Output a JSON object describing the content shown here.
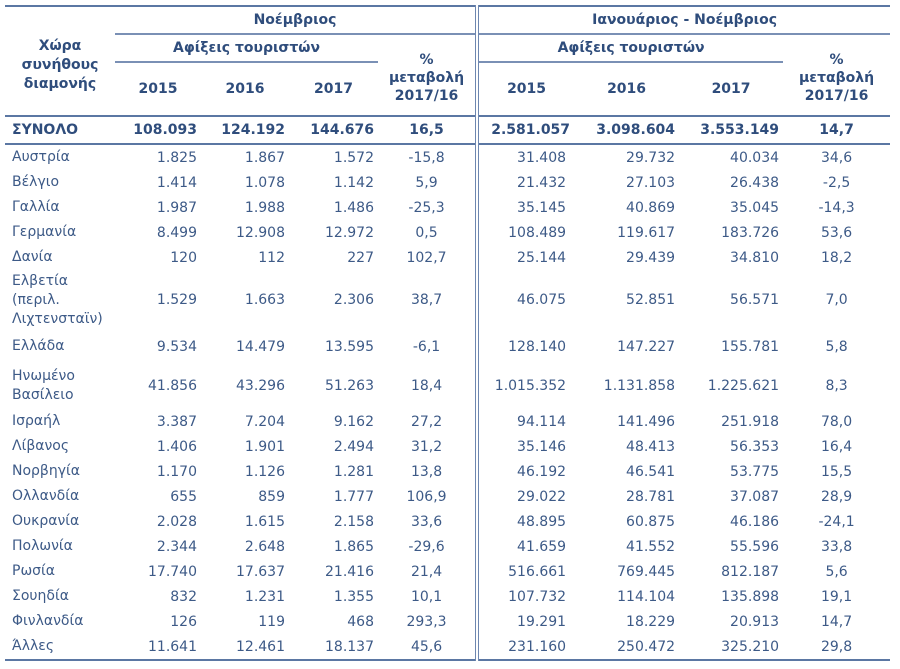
{
  "header": {
    "country_label": "Χώρα συνήθους διαμονής",
    "period_november": "Νοέμβριος",
    "period_jan_nov": "Ιανουάριος - Νοέμβριος",
    "arrivals_label": "Αφίξεις τουριστών",
    "change_label_line1": "%",
    "change_label_line2": "μεταβολή",
    "change_label_line3": "2017/16",
    "years": [
      "2015",
      "2016",
      "2017"
    ]
  },
  "total": {
    "label": "ΣΥΝΟΛΟ",
    "values": [
      "108.093",
      "124.192",
      "144.676",
      "16,5",
      "2.581.057",
      "3.098.604",
      "3.553.149",
      "14,7"
    ]
  },
  "rows": [
    {
      "label": "Αυστρία",
      "values": [
        "1.825",
        "1.867",
        "1.572",
        "-15,8",
        "31.408",
        "29.732",
        "40.034",
        "34,6"
      ]
    },
    {
      "label": "Βέλγιο",
      "values": [
        "1.414",
        "1.078",
        "1.142",
        "5,9",
        "21.432",
        "27.103",
        "26.438",
        "-2,5"
      ]
    },
    {
      "label": "Γαλλία",
      "values": [
        "1.987",
        "1.988",
        "1.486",
        "-25,3",
        "35.145",
        "40.869",
        "35.045",
        "-14,3"
      ]
    },
    {
      "label": "Γερμανία",
      "values": [
        "8.499",
        "12.908",
        "12.972",
        "0,5",
        "108.489",
        "119.617",
        "183.726",
        "53,6"
      ]
    },
    {
      "label": "Δανία",
      "values": [
        "120",
        "112",
        "227",
        "102,7",
        "25.144",
        "29.439",
        "34.810",
        "18,2"
      ]
    },
    {
      "label": "Ελβετία (περιλ. Λιχτενσταϊν)",
      "values": [
        "1.529",
        "1.663",
        "2.306",
        "38,7",
        "46.075",
        "52.851",
        "56.571",
        "7,0"
      ]
    },
    {
      "label": "Ελλάδα",
      "values": [
        "9.534",
        "14.479",
        "13.595",
        "-6,1",
        "128.140",
        "147.227",
        "155.781",
        "5,8"
      ]
    },
    {
      "label": "Ηνωμένο Βασίλειο",
      "values": [
        "41.856",
        "43.296",
        "51.263",
        "18,4",
        "1.015.352",
        "1.131.858",
        "1.225.621",
        "8,3"
      ]
    },
    {
      "label": "Ισραήλ",
      "values": [
        "3.387",
        "7.204",
        "9.162",
        "27,2",
        "94.114",
        "141.496",
        "251.918",
        "78,0"
      ]
    },
    {
      "label": "Λίβανος",
      "values": [
        "1.406",
        "1.901",
        "2.494",
        "31,2",
        "35.146",
        "48.413",
        "56.353",
        "16,4"
      ]
    },
    {
      "label": "Νορβηγία",
      "values": [
        "1.170",
        "1.126",
        "1.281",
        "13,8",
        "46.192",
        "46.541",
        "53.775",
        "15,5"
      ]
    },
    {
      "label": "Ολλανδία",
      "values": [
        "655",
        "859",
        "1.777",
        "106,9",
        "29.022",
        "28.781",
        "37.087",
        "28,9"
      ]
    },
    {
      "label": "Ουκρανία",
      "values": [
        "2.028",
        "1.615",
        "2.158",
        "33,6",
        "48.895",
        "60.875",
        "46.186",
        "-24,1"
      ]
    },
    {
      "label": "Πολωνία",
      "values": [
        "2.344",
        "2.648",
        "1.865",
        "-29,6",
        "41.659",
        "41.552",
        "55.596",
        "33,8"
      ]
    },
    {
      "label": "Ρωσία",
      "values": [
        "17.740",
        "17.637",
        "21.416",
        "21,4",
        "516.661",
        "769.445",
        "812.187",
        "5,6"
      ]
    },
    {
      "label": "Σουηδία",
      "values": [
        "832",
        "1.231",
        "1.355",
        "10,1",
        "107.732",
        "114.104",
        "135.898",
        "19,1"
      ]
    },
    {
      "label": "Φινλανδία",
      "values": [
        "126",
        "119",
        "468",
        "293,3",
        "19.291",
        "18.229",
        "20.913",
        "14,7"
      ]
    },
    {
      "label": "Άλλες",
      "values": [
        "11.641",
        "12.461",
        "18.137",
        "45,6",
        "231.160",
        "250.472",
        "325.210",
        "29,8"
      ]
    }
  ]
}
